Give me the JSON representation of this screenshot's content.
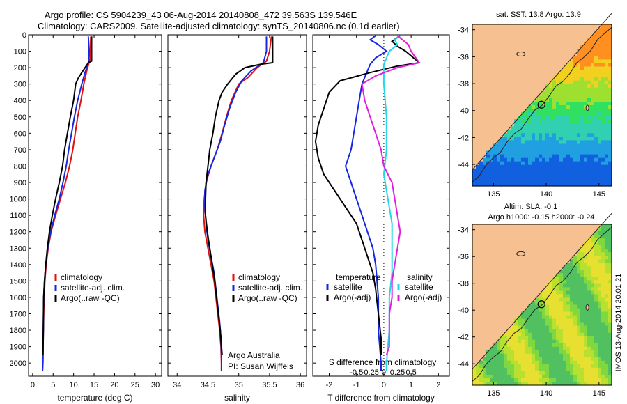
{
  "title_line1": "Argo profile: CS 5904239_43 06-Aug-2014 20140808_472 39.563S 139.546E",
  "title_line2": "Climatology: CARS2009. Satellite-adjusted climatology: synTS_20140806.nc (0.1d earlier)",
  "colors": {
    "clim": "#e01010",
    "sat": "#1428e0",
    "argo": "#000000",
    "sal_sat": "#22d8e8",
    "sal_argo": "#e020e0",
    "land": "#f6c090"
  },
  "chart_data": [
    {
      "type": "line",
      "name": "temperature",
      "xlabel": "temperature (deg C)",
      "xticks": [
        0,
        5,
        10,
        15,
        20,
        25,
        30
      ],
      "xlim": [
        -1,
        31.5
      ],
      "ylim": [
        2080,
        0
      ],
      "yticks": [
        0,
        100,
        200,
        300,
        400,
        500,
        600,
        700,
        800,
        900,
        1000,
        1100,
        1200,
        1300,
        1400,
        1500,
        1600,
        1700,
        1800,
        1900,
        2000
      ],
      "legend": [
        "climatology",
        "satellite-adj. clim.",
        "Argo(..raw -QC)"
      ],
      "series": [
        {
          "name": "climatology",
          "color": "clim",
          "points": [
            [
              14.2,
              10
            ],
            [
              14.1,
              100
            ],
            [
              14,
              150
            ],
            [
              13.2,
              220
            ],
            [
              12.5,
              300
            ],
            [
              11.8,
              400
            ],
            [
              11,
              500
            ],
            [
              10.4,
              600
            ],
            [
              9.8,
              700
            ],
            [
              9,
              800
            ],
            [
              8,
              900
            ],
            [
              6.8,
              1000
            ],
            [
              5.6,
              1100
            ],
            [
              4.5,
              1200
            ],
            [
              3.8,
              1300
            ],
            [
              3.3,
              1400
            ],
            [
              3,
              1500
            ],
            [
              2.8,
              1600
            ],
            [
              2.6,
              1800
            ],
            [
              2.5,
              2000
            ],
            [
              2.4,
              2050
            ]
          ]
        },
        {
          "name": "satellite-adj. clim.",
          "color": "sat",
          "points": [
            [
              13.6,
              10
            ],
            [
              13.8,
              100
            ],
            [
              13.6,
              170
            ],
            [
              12.8,
              230
            ],
            [
              12,
              300
            ],
            [
              11,
              400
            ],
            [
              10.2,
              500
            ],
            [
              9.5,
              600
            ],
            [
              8.8,
              700
            ],
            [
              8.2,
              800
            ],
            [
              7.4,
              900
            ],
            [
              6.5,
              1000
            ],
            [
              5.4,
              1100
            ],
            [
              4.4,
              1200
            ],
            [
              3.7,
              1300
            ],
            [
              3.2,
              1400
            ],
            [
              2.9,
              1500
            ],
            [
              2.7,
              1600
            ],
            [
              2.6,
              1800
            ],
            [
              2.5,
              2000
            ],
            [
              2.4,
              2050
            ]
          ]
        },
        {
          "name": "Argo(..raw -QC)",
          "color": "argo",
          "points": [
            [
              14.4,
              10
            ],
            [
              14.4,
              160
            ],
            [
              13.6,
              170
            ],
            [
              12.8,
              200
            ],
            [
              11.2,
              260
            ],
            [
              10.5,
              300
            ],
            [
              10,
              400
            ],
            [
              9.2,
              500
            ],
            [
              8.5,
              600
            ],
            [
              7.8,
              700
            ],
            [
              7.3,
              800
            ],
            [
              6.5,
              900
            ],
            [
              5.6,
              1000
            ],
            [
              4.8,
              1100
            ],
            [
              4.1,
              1200
            ],
            [
              3.6,
              1300
            ],
            [
              3.2,
              1400
            ],
            [
              2.9,
              1500
            ],
            [
              2.7,
              1600
            ],
            [
              2.6,
              1800
            ],
            [
              2.5,
              1950
            ]
          ]
        }
      ]
    },
    {
      "type": "line",
      "name": "salinity",
      "xlabel": "salinity",
      "xticks": [
        34,
        34.5,
        35,
        35.5,
        36
      ],
      "xlim": [
        33.85,
        36.1
      ],
      "ylim": [
        2080,
        0
      ],
      "legend": [
        "climatology",
        "satellite-adj. clim.",
        "Argo(..raw -QC)"
      ],
      "annotation": [
        "Argo Australia",
        "PI: Susan Wijffels"
      ],
      "series": [
        {
          "name": "climatology",
          "color": "clim",
          "points": [
            [
              35.53,
              10
            ],
            [
              35.5,
              100
            ],
            [
              35.45,
              160
            ],
            [
              35.3,
              200
            ],
            [
              35.15,
              260
            ],
            [
              35.0,
              300
            ],
            [
              34.88,
              400
            ],
            [
              34.8,
              500
            ],
            [
              34.73,
              600
            ],
            [
              34.65,
              700
            ],
            [
              34.55,
              800
            ],
            [
              34.47,
              900
            ],
            [
              34.44,
              1000
            ],
            [
              34.43,
              1100
            ],
            [
              34.45,
              1200
            ],
            [
              34.5,
              1300
            ],
            [
              34.55,
              1400
            ],
            [
              34.6,
              1500
            ],
            [
              34.63,
              1600
            ],
            [
              34.66,
              1700
            ],
            [
              34.69,
              1800
            ],
            [
              34.71,
              1900
            ],
            [
              34.72,
              2000
            ],
            [
              34.72,
              2050
            ]
          ]
        },
        {
          "name": "satellite-adj. clim.",
          "color": "sat",
          "points": [
            [
              35.45,
              10
            ],
            [
              35.45,
              100
            ],
            [
              35.4,
              170
            ],
            [
              35.2,
              220
            ],
            [
              35.05,
              280
            ],
            [
              34.95,
              350
            ],
            [
              34.85,
              450
            ],
            [
              34.77,
              550
            ],
            [
              34.7,
              650
            ],
            [
              34.6,
              750
            ],
            [
              34.5,
              850
            ],
            [
              34.45,
              950
            ],
            [
              34.45,
              1050
            ],
            [
              34.47,
              1150
            ],
            [
              34.5,
              1250
            ],
            [
              34.55,
              1350
            ],
            [
              34.6,
              1450
            ],
            [
              34.63,
              1550
            ],
            [
              34.66,
              1650
            ],
            [
              34.69,
              1750
            ],
            [
              34.71,
              1850
            ],
            [
              34.72,
              1950
            ],
            [
              34.72,
              2050
            ]
          ]
        },
        {
          "name": "Argo(..raw -QC)",
          "color": "argo",
          "points": [
            [
              35.55,
              10
            ],
            [
              35.55,
              170
            ],
            [
              35.35,
              180
            ],
            [
              35.1,
              200
            ],
            [
              34.95,
              240
            ],
            [
              34.82,
              300
            ],
            [
              34.73,
              350
            ],
            [
              34.68,
              400
            ],
            [
              34.62,
              500
            ],
            [
              34.58,
              600
            ],
            [
              34.53,
              700
            ],
            [
              34.5,
              800
            ],
            [
              34.47,
              900
            ],
            [
              34.46,
              1000
            ],
            [
              34.46,
              1100
            ],
            [
              34.49,
              1200
            ],
            [
              34.53,
              1300
            ],
            [
              34.57,
              1400
            ],
            [
              34.61,
              1500
            ],
            [
              34.64,
              1600
            ],
            [
              34.67,
              1700
            ],
            [
              34.7,
              1800
            ],
            [
              34.72,
              1900
            ],
            [
              34.73,
              1950
            ]
          ]
        }
      ]
    },
    {
      "type": "line",
      "name": "difference from climatology",
      "xlabel": "T difference from climatology",
      "xlabel_top": "S difference from climatology",
      "xticks": [
        -2,
        -1,
        0,
        1,
        2
      ],
      "xticks_top": [
        "-0.5",
        "-0.25",
        "0",
        "0.25",
        "0.5"
      ],
      "xlim": [
        -2.6,
        2.4
      ],
      "ylim": [
        2080,
        0
      ],
      "legend_temperature": [
        "temperature",
        "satellite",
        "Argo(-adj)"
      ],
      "legend_salinity": [
        "salinity",
        "satellite",
        "Argo(-adj)"
      ],
      "series": [
        {
          "name": "T satellite",
          "color": "sat",
          "points": [
            [
              -0.3,
              5
            ],
            [
              -0.5,
              30
            ],
            [
              -0.2,
              60
            ],
            [
              0.1,
              100
            ],
            [
              -0.3,
              140
            ],
            [
              -0.5,
              180
            ],
            [
              -0.6,
              220
            ],
            [
              -0.8,
              300
            ],
            [
              -0.9,
              400
            ],
            [
              -1.0,
              500
            ],
            [
              -1.1,
              600
            ],
            [
              -1.2,
              700
            ],
            [
              -1.4,
              800
            ],
            [
              -1.2,
              900
            ],
            [
              -1.0,
              1000
            ],
            [
              -0.8,
              1100
            ],
            [
              -0.6,
              1200
            ],
            [
              -0.4,
              1300
            ],
            [
              -0.3,
              1400
            ],
            [
              -0.2,
              1600
            ],
            [
              -0.2,
              1800
            ],
            [
              -0.1,
              2000
            ],
            [
              -0.1,
              2050
            ]
          ]
        },
        {
          "name": "T Argo(-adj)",
          "color": "argo",
          "points": [
            [
              0.6,
              5
            ],
            [
              0.3,
              40
            ],
            [
              0.5,
              70
            ],
            [
              0.8,
              100
            ],
            [
              1.3,
              170
            ],
            [
              0.5,
              190
            ],
            [
              -0.5,
              230
            ],
            [
              -1.6,
              280
            ],
            [
              -2.0,
              350
            ],
            [
              -2.2,
              450
            ],
            [
              -2.4,
              550
            ],
            [
              -2.5,
              650
            ],
            [
              -2.4,
              750
            ],
            [
              -2.2,
              850
            ],
            [
              -1.8,
              950
            ],
            [
              -1.4,
              1050
            ],
            [
              -1.0,
              1150
            ],
            [
              -0.8,
              1250
            ],
            [
              -0.6,
              1350
            ],
            [
              -0.4,
              1450
            ],
            [
              -0.3,
              1550
            ],
            [
              -0.2,
              1700
            ],
            [
              -0.1,
              1850
            ],
            [
              -0.1,
              1950
            ]
          ]
        },
        {
          "name": "S satellite",
          "color": "sal_sat",
          "points": [
            [
              0.6,
              5
            ],
            [
              0.4,
              30
            ],
            [
              0.5,
              60
            ],
            [
              0.2,
              100
            ],
            [
              0.0,
              180
            ],
            [
              0.0,
              300
            ],
            [
              0.1,
              500
            ],
            [
              0.1,
              700
            ],
            [
              0.0,
              850
            ],
            [
              0.1,
              950
            ],
            [
              0.2,
              1050
            ],
            [
              0.3,
              1150
            ],
            [
              0.3,
              1300
            ],
            [
              0.3,
              1450
            ],
            [
              0.2,
              1600
            ],
            [
              0.2,
              1800
            ],
            [
              0.1,
              2000
            ],
            [
              0.1,
              2050
            ]
          ]
        },
        {
          "name": "S Argo(-adj)",
          "color": "sal_argo",
          "points": [
            [
              0.5,
              5
            ],
            [
              0.9,
              60
            ],
            [
              1.0,
              100
            ],
            [
              1.3,
              170
            ],
            [
              0.5,
              200
            ],
            [
              -0.3,
              250
            ],
            [
              -0.8,
              300
            ],
            [
              -0.7,
              400
            ],
            [
              -0.5,
              500
            ],
            [
              -0.3,
              600
            ],
            [
              -0.1,
              700
            ],
            [
              0.0,
              800
            ],
            [
              0.3,
              900
            ],
            [
              0.4,
              1000
            ],
            [
              0.5,
              1100
            ],
            [
              0.6,
              1200
            ],
            [
              0.5,
              1300
            ],
            [
              0.4,
              1400
            ],
            [
              0.3,
              1500
            ],
            [
              0.3,
              1600
            ],
            [
              0.2,
              1700
            ],
            [
              0.2,
              1800
            ],
            [
              0.2,
              1900
            ],
            [
              0.1,
              1950
            ]
          ]
        }
      ]
    },
    {
      "type": "heatmap",
      "name": "sst-map",
      "title": "sat. SST: 13.8 Argo: 13.9",
      "xticks": [
        135,
        140,
        145
      ],
      "yticks": [
        -34,
        -36,
        -38,
        -40,
        -42,
        -44
      ],
      "xlim": [
        133,
        146.2
      ],
      "ylim": [
        -45.6,
        -33.6
      ],
      "marker": [
        139.55,
        -39.56
      ]
    },
    {
      "type": "heatmap",
      "name": "sla-map",
      "title_line1": "Altim. SLA: -0.1",
      "title_line2": "Argo h1000: -0.15 h2000: -0.24",
      "xticks": [
        135,
        140,
        145
      ],
      "yticks": [
        -34,
        -36,
        -38,
        -40,
        -42,
        -44
      ],
      "xlim": [
        133,
        146.2
      ],
      "ylim": [
        -45.6,
        -33.6
      ],
      "marker": [
        139.55,
        -39.56
      ]
    }
  ],
  "side_label": "IMOS 13-Aug-2014 20:01:21"
}
